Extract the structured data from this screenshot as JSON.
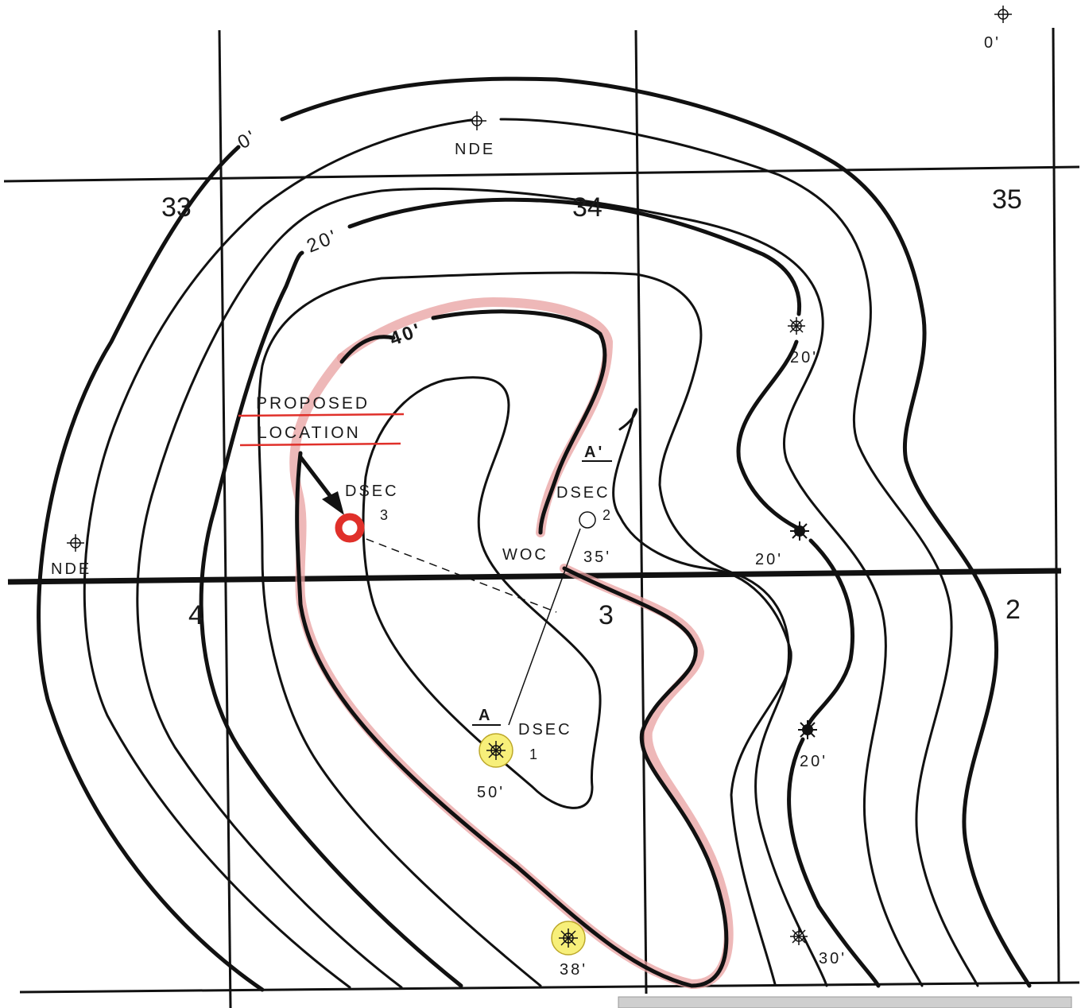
{
  "sections": {
    "s33": "33",
    "s34": "34",
    "s35": "35",
    "s4": "4",
    "s3": "3",
    "s2": "2"
  },
  "contour_labels": {
    "c0": "0'",
    "c20": "20'",
    "c40": "40'"
  },
  "wells": {
    "nde_top": "NDE",
    "nde_left": "NDE",
    "far_ne": "0'",
    "east_upper": "20'",
    "east_mid": "20'",
    "east_low": "20'",
    "south_east": "30'",
    "south_prod": "38'",
    "dsec1_name": "DSEC",
    "dsec1_num": "1",
    "dsec1_val": "50'",
    "dsec2_name": "DSEC",
    "dsec2_num": "2",
    "dsec2_val": "35'",
    "dsec3_name": "DSEC",
    "dsec3_num": "3"
  },
  "annotations": {
    "proposed": "PROPOSED",
    "location": "LOCATION",
    "woc": "WOC",
    "a_label": "A",
    "a_prime_label": "A'"
  },
  "colors": {
    "proposed_well": "#e0302a",
    "producing_well_fill": "#f7ef7a",
    "woc_highlight": "#e8a0a0"
  }
}
